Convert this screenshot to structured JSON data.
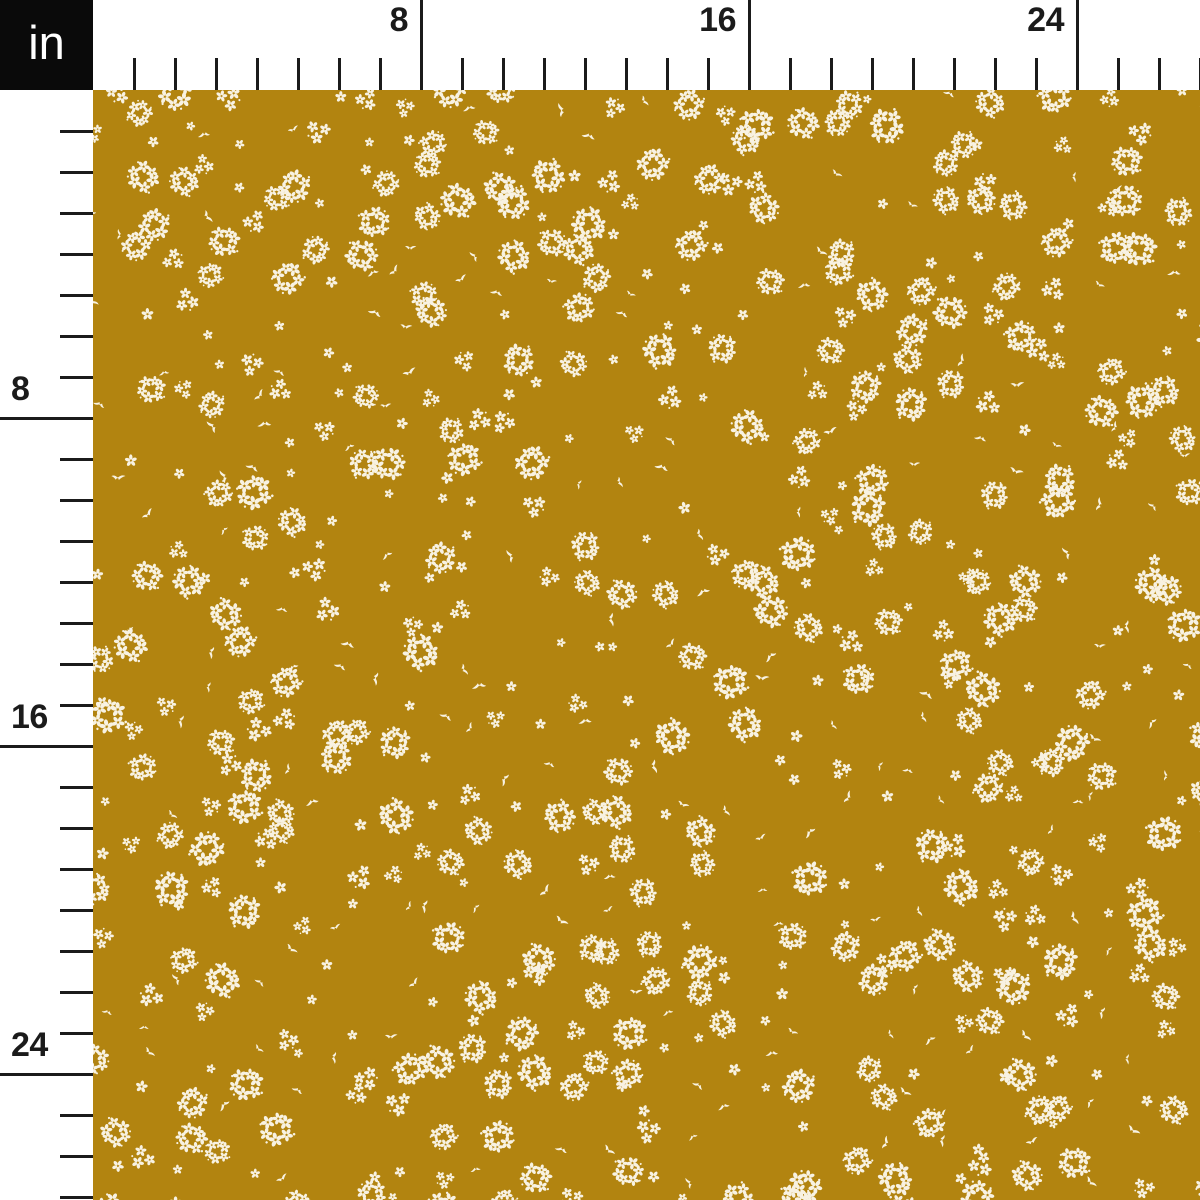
{
  "unit_box": {
    "label": "in",
    "background": "#0a0a0a",
    "text_color": "#ffffff"
  },
  "ruler": {
    "background": "#ffffff",
    "tick_color": "#1b1b1b",
    "label_color": "#1b1b1b",
    "total_inches": 27,
    "major_every_inches": 8,
    "top_labels": [
      "8",
      "16",
      "24"
    ],
    "left_labels": [
      "8",
      "16",
      "24"
    ]
  },
  "fabric": {
    "background_color": "#b28410",
    "flower_color": "#f8f2e2",
    "pattern_description": "scattered white ditsy flower clusters on mustard gold",
    "element_names": [
      "large-flower-cluster",
      "medium-flower-cluster",
      "single-flower",
      "leaf-sprig"
    ]
  }
}
